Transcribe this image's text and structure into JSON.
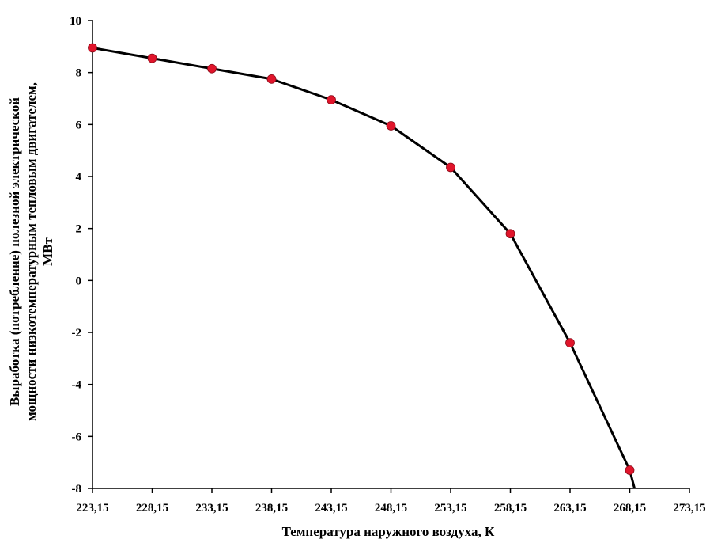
{
  "chart_data": {
    "type": "line",
    "xlabel": "Температура наружного воздуха, К",
    "ylabel_lines": [
      "Выработка (потребление) полезной электрической",
      "мощности низкотемпературным тепловым двигателем,",
      "МВт"
    ],
    "x_ticks": [
      "223,15",
      "228,15",
      "233,15",
      "238,15",
      "243,15",
      "248,15",
      "253,15",
      "258,15",
      "263,15",
      "268,15",
      "273,15"
    ],
    "y_ticks": [
      "10",
      "8",
      "6",
      "4",
      "2",
      "0",
      "-2",
      "-4",
      "-6",
      "-8"
    ],
    "xlim": [
      223.15,
      273.15
    ],
    "ylim": [
      -8,
      10
    ],
    "grid": false,
    "series": [
      {
        "x": [
          223.15,
          228.15,
          233.15,
          238.15,
          243.15,
          248.15,
          253.15,
          258.15,
          263.15,
          268.15
        ],
        "values": [
          8.95,
          8.55,
          8.15,
          7.75,
          6.95,
          5.95,
          4.35,
          1.8,
          -2.4,
          -7.3
        ],
        "line_end": {
          "x": 268.55,
          "y": -8
        },
        "line_color": "#000000",
        "marker_color": "#e0152b"
      }
    ]
  }
}
